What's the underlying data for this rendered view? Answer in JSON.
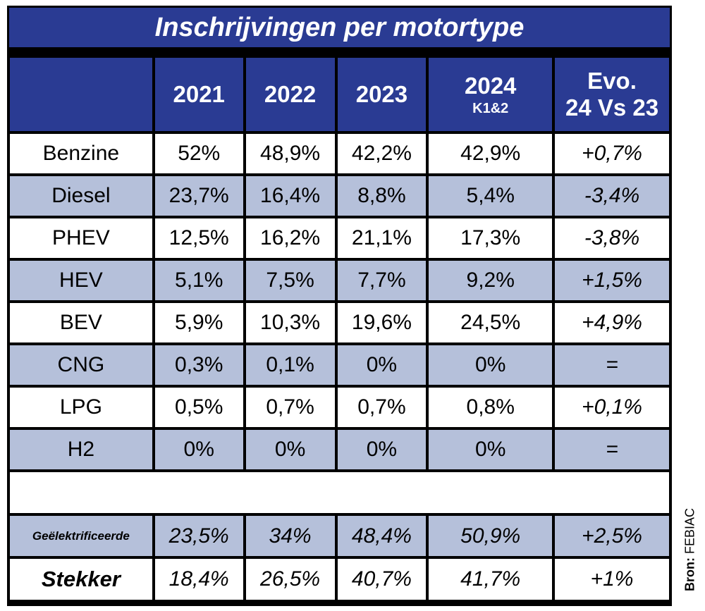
{
  "chart_data": {
    "type": "table",
    "title": "Inschrijvingen per motortype",
    "columns": [
      "",
      "2021",
      "2022",
      "2023",
      "2024",
      "Evo."
    ],
    "column_sub": [
      "",
      "",
      "",
      "",
      "K1&2",
      "24 Vs 23"
    ],
    "rows": [
      {
        "label": "Benzine",
        "values": [
          "52%",
          "48,9%",
          "42,2%",
          "42,9%",
          "+0,7%"
        ]
      },
      {
        "label": "Diesel",
        "values": [
          "23,7%",
          "16,4%",
          "8,8%",
          "5,4%",
          "-3,4%"
        ]
      },
      {
        "label": "PHEV",
        "values": [
          "12,5%",
          "16,2%",
          "21,1%",
          "17,3%",
          "-3,8%"
        ]
      },
      {
        "label": "HEV",
        "values": [
          "5,1%",
          "7,5%",
          "7,7%",
          "9,2%",
          "+1,5%"
        ]
      },
      {
        "label": "BEV",
        "values": [
          "5,9%",
          "10,3%",
          "19,6%",
          "24,5%",
          "+4,9%"
        ]
      },
      {
        "label": "CNG",
        "values": [
          "0,3%",
          "0,1%",
          "0%",
          "0%",
          "="
        ]
      },
      {
        "label": "LPG",
        "values": [
          "0,5%",
          "0,7%",
          "0,7%",
          "0,8%",
          "+0,1%"
        ]
      },
      {
        "label": "H2",
        "values": [
          "0%",
          "0%",
          "0%",
          "0%",
          "="
        ]
      }
    ],
    "summary_rows": [
      {
        "label": "Geëlektrificeerde",
        "values": [
          "23,5%",
          "34%",
          "48,4%",
          "50,9%",
          "+2,5%"
        ]
      },
      {
        "label": "Stekker",
        "values": [
          "18,4%",
          "26,5%",
          "40,7%",
          "41,7%",
          "+1%"
        ]
      }
    ],
    "source_label": "Bron:",
    "source_name": "FEBIAC"
  },
  "colors": {
    "header_blue": "#2a3b93",
    "row_blue": "#b5c0da",
    "row_white": "#ffffff"
  }
}
